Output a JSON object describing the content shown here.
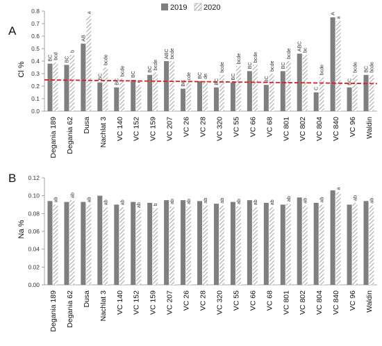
{
  "legend": {
    "s2019": "2019",
    "s2020": "2020"
  },
  "colors": {
    "s2019": "#7f7f7f",
    "hatch": "#8c8c8c",
    "axis": "#8c8c8c",
    "threshold": "#e31a1c"
  },
  "chart_data": [
    {
      "type": "bar",
      "panel_label": "A",
      "ylabel": "Cl %",
      "ylim": [
        0,
        0.8
      ],
      "yticks": [
        0.0,
        0.1,
        0.2,
        0.3,
        0.4,
        0.5,
        0.6,
        0.7,
        0.8
      ],
      "tick_labels": [
        "0.0",
        "0.1",
        "0.2",
        "0.3",
        "0.4",
        "0.5",
        "0.6",
        "0.7",
        "0.8"
      ],
      "grid": false,
      "legend_position": "top-center",
      "categories": [
        "Degania 189",
        "Degania 62",
        "Dusa",
        "Nachlat 3",
        "VC 140",
        "VC 152",
        "VC 159",
        "VC 207",
        "VC 26",
        "VC 28",
        "VC 320",
        "VC 55",
        "VC 66",
        "VC 68",
        "VC 801",
        "VC 802",
        "VC 804",
        "VC 840",
        "VC 96",
        "Waldin"
      ],
      "series": [
        {
          "name": "2019",
          "pattern": "solid",
          "values": [
            0.38,
            0.37,
            0.54,
            0.23,
            0.19,
            0.25,
            0.29,
            0.4,
            0.18,
            0.24,
            0.19,
            0.23,
            0.32,
            0.21,
            0.32,
            0.46,
            0.15,
            0.75,
            0.19,
            0.29
          ],
          "labels": [
            "BC",
            "BC",
            "AB",
            "BC",
            "BC",
            "BC",
            "BC",
            "ABC",
            "BC",
            "BC",
            "BC",
            "BC",
            "BC",
            "BC",
            "BC",
            "ABC",
            "C",
            "A",
            "BC",
            "BC"
          ]
        },
        {
          "name": "2020",
          "pattern": "hatched",
          "values": [
            0.39,
            0.45,
            0.76,
            0.35,
            0.26,
            0.21,
            0.31,
            0.4,
            0.23,
            0.24,
            0.29,
            0.36,
            0.37,
            0.3,
            0.4,
            0.45,
            0.27,
            0.72,
            0.29,
            0.29
          ],
          "labels": [
            "bcd",
            "b",
            "a",
            "bcde",
            "bcde",
            "e",
            "bcde",
            "bcde",
            "cde",
            "de",
            "bcde",
            "bcde",
            "bcde",
            "bcde",
            "bcde",
            "bc",
            "bcde",
            "a",
            "bcde",
            "bcde"
          ]
        }
      ],
      "reference_line": {
        "y_start": 0.25,
        "y_end": 0.22,
        "style": "dashed",
        "color": "#e31a1c"
      }
    },
    {
      "type": "bar",
      "panel_label": "B",
      "ylabel": "Na %",
      "ylim": [
        0,
        0.12
      ],
      "yticks": [
        0.0,
        0.02,
        0.04,
        0.06,
        0.08,
        0.1,
        0.12
      ],
      "tick_labels": [
        "0.00",
        "0.02",
        "0.04",
        "0.06",
        "0.08",
        "0.10",
        "0.12"
      ],
      "grid": false,
      "categories": [
        "Degania 189",
        "Degania 62",
        "Dusa",
        "Nachlat 3",
        "VC 140",
        "VC 152",
        "VC 159",
        "VC 207",
        "VC 26",
        "VC 28",
        "VC 320",
        "VC 55",
        "VC 66",
        "VC 68",
        "VC 801",
        "VC 802",
        "VC 804",
        "VC 840",
        "VC 96",
        "Waldin"
      ],
      "series": [
        {
          "name": "2019",
          "pattern": "solid",
          "values": [
            0.094,
            0.093,
            0.093,
            0.1,
            0.09,
            0.093,
            0.092,
            0.095,
            0.095,
            0.094,
            0.091,
            0.093,
            0.095,
            0.092,
            0.09,
            0.098,
            0.092,
            0.106,
            0.09,
            0.094
          ]
        },
        {
          "name": "2020",
          "pattern": "hatched",
          "values": [
            0.09,
            0.095,
            0.09,
            0.087,
            0.087,
            0.084,
            0.086,
            0.088,
            0.088,
            0.089,
            0.089,
            0.088,
            0.087,
            0.087,
            0.091,
            0.089,
            0.09,
            0.104,
            0.092,
            0.089
          ],
          "labels": [
            "ab",
            "ab",
            "ab",
            "ab",
            "ab",
            "ab",
            "b",
            "ab",
            "ab",
            "ab",
            "ab",
            "ab",
            "ab",
            "ab",
            "ab",
            "ab",
            "ab",
            "a",
            "ab",
            "ab"
          ]
        }
      ]
    }
  ]
}
